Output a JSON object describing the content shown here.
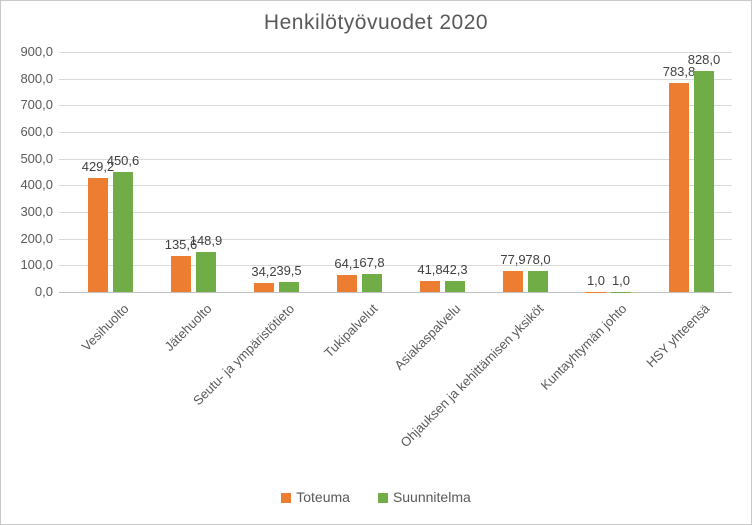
{
  "chart_data": {
    "type": "bar",
    "title": "Henkilötyövuodet 2020",
    "categories": [
      "Vesihuolto",
      "Jätehuolto",
      "Seutu- ja ympäristötieto",
      "Tukipalvelut",
      "Asiakaspalvelu",
      "Ohjauksen ja kehittämisen yksiköt",
      "Kuntayhtymän johto",
      "HSY yhteensä"
    ],
    "series": [
      {
        "name": "Toteuma",
        "color": "#ED7D31",
        "values": [
          429.2,
          135.6,
          34.2,
          64.1,
          41.8,
          77.9,
          1.0,
          783.8
        ],
        "labels": [
          "429,2",
          "135,6",
          "34,2",
          "64,1",
          "41,8",
          "77,9",
          "1,0",
          "783,8"
        ]
      },
      {
        "name": "Suunnitelma",
        "color": "#70AD47",
        "values": [
          450.6,
          148.9,
          39.5,
          67.8,
          42.3,
          78.0,
          1.0,
          828.0
        ],
        "labels": [
          "450,6",
          "148,9",
          "39,5",
          "67,8",
          "42,3",
          "78,0",
          "1,0",
          "828,0"
        ]
      }
    ],
    "xlabel": "",
    "ylabel": "",
    "ylim": [
      0,
      900
    ],
    "y_tick_step": 100,
    "y_tick_labels": [
      "0,0",
      "100,0",
      "200,0",
      "300,0",
      "400,0",
      "500,0",
      "600,0",
      "700,0",
      "800,0",
      "900,0"
    ],
    "grid": true,
    "legend_position": "bottom",
    "decimal_separator": ","
  },
  "colors": {
    "gridline": "#d9d9d9",
    "axis_line": "#bfbfbf",
    "tick_text": "#595959",
    "value_label_text": "#404040",
    "title_text": "#595959",
    "frame_border": "#c9c9c9"
  }
}
